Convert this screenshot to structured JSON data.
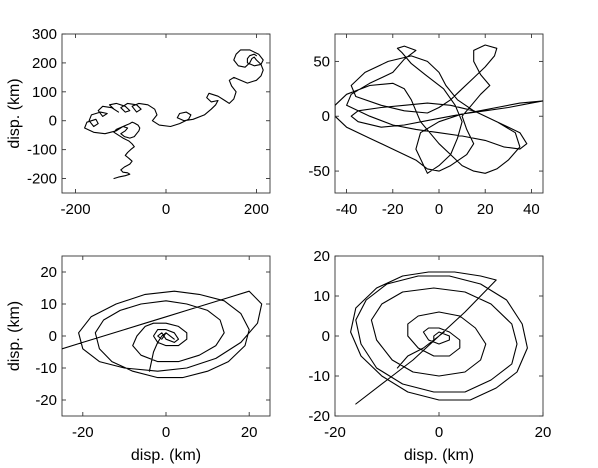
{
  "figure": {
    "background": "#ffffff",
    "line_color": "#000000"
  },
  "chart_data": [
    {
      "type": "line",
      "panel": "top-left",
      "xlabel": "",
      "ylabel": "disp. (km)",
      "xlim": [
        -230,
        230
      ],
      "ylim": [
        -250,
        300
      ],
      "xticks": [
        -200,
        0,
        200
      ],
      "yticks": [
        -200,
        -100,
        0,
        100,
        200,
        300
      ],
      "xtick_labels": [
        "-200",
        "0",
        "200"
      ],
      "ytick_labels": [
        "-200",
        "-100",
        "0",
        "100",
        "200",
        "300"
      ],
      "grid": false,
      "series": [
        {
          "color": "#000000",
          "x": [
            -115,
            -105,
            -90,
            -80,
            -85,
            -95,
            -100,
            -92,
            -80,
            -75,
            -82,
            -90,
            -85,
            -78,
            -70,
            -75,
            -82,
            -95,
            -105,
            -115,
            -110,
            -95,
            -85,
            -90,
            -100,
            -92,
            -80,
            -70,
            -65,
            -60,
            -58,
            -62,
            -70,
            -75,
            -80,
            -95,
            -110,
            -135,
            -160,
            -180,
            -175,
            -155,
            -150,
            -160,
            -170,
            -165,
            -145,
            -130,
            -140,
            -150,
            -140,
            -120,
            -105,
            -115,
            -125,
            -110,
            -90,
            -80,
            -90,
            -100,
            -85,
            -65,
            -55,
            -65,
            -75,
            -60,
            -40,
            -25,
            -20,
            -30,
            -15,
            10,
            30,
            50,
            55,
            45,
            30,
            25,
            40,
            60,
            85,
            100,
            110,
            115,
            100,
            90,
            95,
            115,
            130,
            140,
            150,
            155,
            145,
            140,
            150,
            165,
            180,
            200,
            210,
            215,
            210,
            200,
            195,
            190,
            185,
            175,
            160,
            150,
            155,
            165,
            185,
            205,
            215,
            210,
            195,
            180,
            180,
            185,
            195,
            200
          ],
          "y": [
            -200,
            -195,
            -190,
            -185,
            -180,
            -178,
            -170,
            -160,
            -150,
            -140,
            -130,
            -120,
            -110,
            -100,
            -90,
            -80,
            -70,
            -60,
            -50,
            -40,
            -30,
            -20,
            -25,
            -35,
            -45,
            -55,
            -60,
            -55,
            -45,
            -35,
            -25,
            -15,
            -8,
            -5,
            -10,
            -20,
            -35,
            -45,
            -40,
            -25,
            -5,
            5,
            -10,
            -20,
            0,
            20,
            30,
            25,
            15,
            35,
            50,
            45,
            30,
            40,
            55,
            60,
            50,
            35,
            30,
            45,
            60,
            55,
            40,
            30,
            50,
            60,
            55,
            40,
            20,
            0,
            -15,
            -20,
            -10,
            5,
            20,
            30,
            25,
            10,
            0,
            5,
            20,
            40,
            55,
            70,
            65,
            80,
            95,
            85,
            70,
            60,
            75,
            100,
            120,
            140,
            150,
            140,
            130,
            140,
            155,
            175,
            195,
            210,
            220,
            215,
            200,
            185,
            190,
            210,
            230,
            245,
            245,
            230,
            210,
            195,
            190,
            200,
            215,
            225,
            230,
            225
          ]
        }
      ]
    },
    {
      "type": "line",
      "panel": "top-right",
      "xlabel": "",
      "ylabel": "",
      "xlim": [
        -45,
        45
      ],
      "ylim": [
        -70,
        75
      ],
      "xticks": [
        -40,
        -20,
        0,
        20,
        40
      ],
      "yticks": [
        -50,
        0,
        50
      ],
      "xtick_labels": [
        "-40",
        "-20",
        "0",
        "20",
        "40"
      ],
      "ytick_labels": [
        "-50",
        "0",
        "50"
      ],
      "grid": false,
      "series": [
        {
          "color": "#000000",
          "x": [
            -5,
            0,
            5,
            8,
            10,
            7,
            2,
            -6,
            -12,
            -16,
            -18,
            -15,
            -10,
            -15,
            -20,
            -30,
            -38,
            -40,
            -30,
            -20,
            -10,
            0,
            10,
            20,
            28,
            35,
            38,
            35,
            25,
            15,
            8,
            3,
            0,
            -5,
            -12,
            -22,
            -32,
            -38,
            -36,
            -25,
            -15,
            -5,
            0,
            5,
            10,
            15,
            20,
            24,
            25,
            20,
            15,
            15,
            18,
            22,
            18,
            14,
            10,
            12,
            15,
            12,
            5,
            0,
            -5,
            -10,
            -20,
            -30,
            -40,
            -45,
            -45,
            -40,
            -30,
            -20,
            -15,
            -12,
            -10,
            -8,
            -4,
            0,
            5,
            10,
            15,
            20,
            25,
            30,
            35,
            33,
            25,
            15,
            5,
            -5,
            -15,
            -25,
            -35,
            -38,
            -35,
            -25,
            -15,
            -5,
            5,
            15,
            25,
            35,
            45,
            40,
            30,
            20,
            10,
            0,
            -8,
            -10,
            -5
          ],
          "y": [
            -52,
            -45,
            -35,
            -20,
            -5,
            10,
            25,
            38,
            48,
            58,
            62,
            64,
            60,
            52,
            40,
            30,
            20,
            10,
            0,
            -8,
            -12,
            -15,
            -18,
            -22,
            -28,
            -30,
            -25,
            -15,
            -5,
            5,
            15,
            28,
            40,
            50,
            55,
            50,
            40,
            28,
            18,
            10,
            5,
            3,
            8,
            15,
            25,
            35,
            45,
            55,
            62,
            65,
            60,
            50,
            38,
            28,
            20,
            10,
            0,
            -12,
            -25,
            -35,
            -45,
            -50,
            -48,
            -40,
            -30,
            -20,
            -10,
            0,
            10,
            20,
            28,
            30,
            25,
            15,
            5,
            -5,
            -15,
            -25,
            -35,
            -45,
            -50,
            -52,
            -48,
            -40,
            -28,
            -15,
            -5,
            5,
            10,
            12,
            10,
            8,
            5,
            0,
            -5,
            -10,
            -8,
            -4,
            0,
            4,
            8,
            12,
            14,
            12,
            8,
            5,
            2,
            -5,
            -15,
            -30,
            -52
          ]
        }
      ]
    },
    {
      "type": "line",
      "panel": "bottom-left",
      "xlabel": "disp. (km)",
      "ylabel": "disp. (km)",
      "xlim": [
        -25,
        25
      ],
      "ylim": [
        -25,
        25
      ],
      "xticks": [
        -20,
        0,
        20
      ],
      "yticks": [
        -20,
        -10,
        0,
        10,
        20
      ],
      "xtick_labels": [
        "-20",
        "0",
        "20"
      ],
      "ytick_labels": [
        "-20",
        "-10",
        "0",
        "10",
        "20"
      ],
      "grid": false,
      "series": [
        {
          "color": "#000000",
          "x": [
            -25,
            -20,
            -15,
            -10,
            -5,
            0,
            5,
            10,
            15,
            20,
            23,
            22,
            18,
            12,
            5,
            -2,
            -10,
            -16,
            -20,
            -21,
            -18,
            -12,
            -5,
            2,
            8,
            14,
            18,
            20,
            19,
            15,
            10,
            4,
            -2,
            -8,
            -13,
            -16,
            -17,
            -15,
            -11,
            -6,
            0,
            5,
            10,
            13,
            14,
            12,
            8,
            3,
            -2,
            -6,
            -8,
            -7,
            -5,
            -3,
            0,
            3,
            5,
            5,
            3,
            0,
            -2,
            -3,
            -2,
            0,
            2,
            3,
            2,
            0,
            -1,
            -2,
            -1,
            0,
            1,
            2,
            1,
            0,
            -1,
            -2,
            -3,
            -4
          ],
          "y": [
            -4,
            -2,
            0,
            2,
            4,
            6,
            8,
            10,
            12,
            14,
            10,
            4,
            -2,
            -7,
            -10,
            -11,
            -10,
            -8,
            -4,
            1,
            6,
            10,
            13,
            14,
            13,
            11,
            7,
            2,
            -3,
            -8,
            -11,
            -13,
            -13,
            -11,
            -8,
            -4,
            1,
            5,
            8,
            10,
            11,
            10,
            8,
            5,
            1,
            -3,
            -6,
            -8,
            -8,
            -6,
            -3,
            0,
            3,
            4,
            4,
            3,
            1,
            -1,
            -3,
            -3,
            -2,
            0,
            2,
            2,
            1,
            -1,
            -2,
            -1,
            1,
            0,
            -1,
            1,
            0,
            -1,
            0,
            1,
            0,
            -2,
            -5,
            -11
          ]
        }
      ]
    },
    {
      "type": "line",
      "panel": "bottom-right",
      "xlabel": "disp. (km)",
      "ylabel": "",
      "xlim": [
        -20,
        20
      ],
      "ylim": [
        -20,
        20
      ],
      "xticks": [
        -20,
        0,
        20
      ],
      "yticks": [
        -20,
        -10,
        0,
        10,
        20
      ],
      "xtick_labels": [
        "-20",
        "0",
        "20"
      ],
      "ytick_labels": [
        "-20",
        "-10",
        "0",
        "10",
        "20"
      ],
      "grid": false,
      "series": [
        {
          "color": "#000000",
          "x": [
            -16,
            -10,
            -5,
            0,
            5,
            11,
            8,
            3,
            -2,
            -7,
            -12,
            -16,
            -17,
            -15,
            -11,
            -6,
            0,
            6,
            11,
            15,
            17,
            16,
            13,
            8,
            2,
            -4,
            -10,
            -14,
            -16,
            -15,
            -12,
            -7,
            -1,
            5,
            10,
            14,
            15,
            14,
            10,
            5,
            -1,
            -7,
            -11,
            -13,
            -12,
            -9,
            -5,
            0,
            5,
            8,
            9,
            7,
            4,
            0,
            -4,
            -6,
            -6,
            -4,
            -1,
            2,
            4,
            4,
            2,
            0,
            -2,
            -3,
            -2,
            0,
            2,
            2,
            0,
            -1,
            -1,
            0,
            1,
            0,
            -3,
            -6,
            -8
          ],
          "y": [
            -17,
            -11,
            -6,
            0,
            6,
            14,
            15,
            16,
            16,
            15,
            12,
            7,
            1,
            -5,
            -10,
            -14,
            -16,
            -16,
            -13,
            -9,
            -3,
            3,
            9,
            13,
            15,
            15,
            13,
            9,
            4,
            -2,
            -8,
            -12,
            -14,
            -14,
            -11,
            -7,
            -2,
            3,
            8,
            11,
            12,
            11,
            8,
            4,
            -1,
            -6,
            -9,
            -10,
            -9,
            -6,
            -2,
            2,
            5,
            6,
            5,
            3,
            0,
            -3,
            -5,
            -5,
            -3,
            -1,
            1,
            2,
            2,
            1,
            -1,
            -2,
            -1,
            0,
            1,
            0,
            -1,
            0,
            1,
            0,
            -3,
            -5,
            -8
          ]
        }
      ]
    }
  ]
}
